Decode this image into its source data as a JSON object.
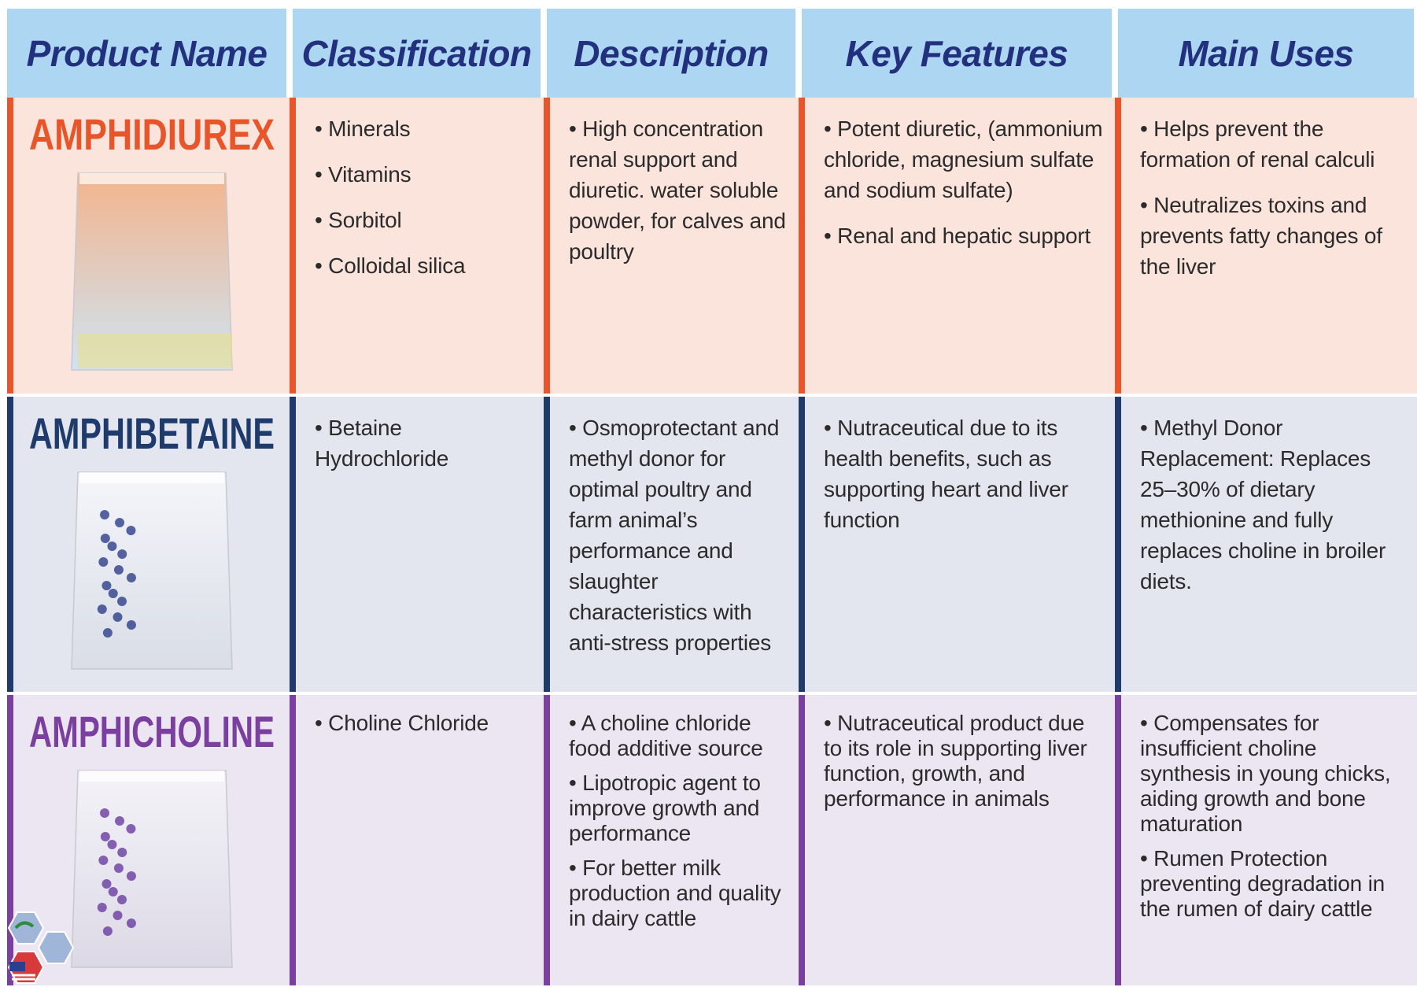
{
  "header": {
    "columns": [
      "Product Name",
      "Classification",
      "Description",
      "Key Features",
      "Main Uses"
    ]
  },
  "rows": [
    {
      "product_name": "AMPHIDIUREX",
      "classification": [
        "• Minerals",
        "• Vitamins",
        "• Sorbitol",
        "• Colloidal silica"
      ],
      "description": [
        "• High concentration renal support and diuretic. water soluble powder, for calves and poultry"
      ],
      "key_features": [
        "• Potent diuretic, (ammonium chloride, magnesium sulfate and sodium sulfate)",
        "• Renal and hepatic support"
      ],
      "main_uses": [
        "• Helps prevent the formation of renal calculi",
        "• Neutralizes toxins and prevents fatty changes of the liver"
      ]
    },
    {
      "product_name": "AMPHIBETAINE",
      "classification": [
        "• Betaine Hydrochloride"
      ],
      "description": [
        "• Osmoprotectant and methyl donor for optimal poultry and farm animal’s performance and slaughter characteristics with anti-stress properties"
      ],
      "key_features": [
        "• Nutraceutical due to its health benefits, such as supporting heart and liver function"
      ],
      "main_uses": [
        "• Methyl Donor Replacement: Replaces 25–30% of dietary methionine and fully replaces choline in broiler diets."
      ]
    },
    {
      "product_name": "AMPHICHOLINE",
      "classification": [
        "• Choline Chloride"
      ],
      "description": [
        "• A choline chloride food additive source",
        "• Lipotropic agent to improve growth and performance",
        "• For better milk production and quality in dairy cattle"
      ],
      "key_features": [
        "• Nutraceutical product due to its role in supporting liver function, growth, and performance in animals"
      ],
      "main_uses": [
        "• Compensates for insufficient choline synthesis in young chicks, aiding growth and bone maturation",
        "• Rumen Protection preventing degradation in the rumen of dairy cattle"
      ]
    }
  ]
}
